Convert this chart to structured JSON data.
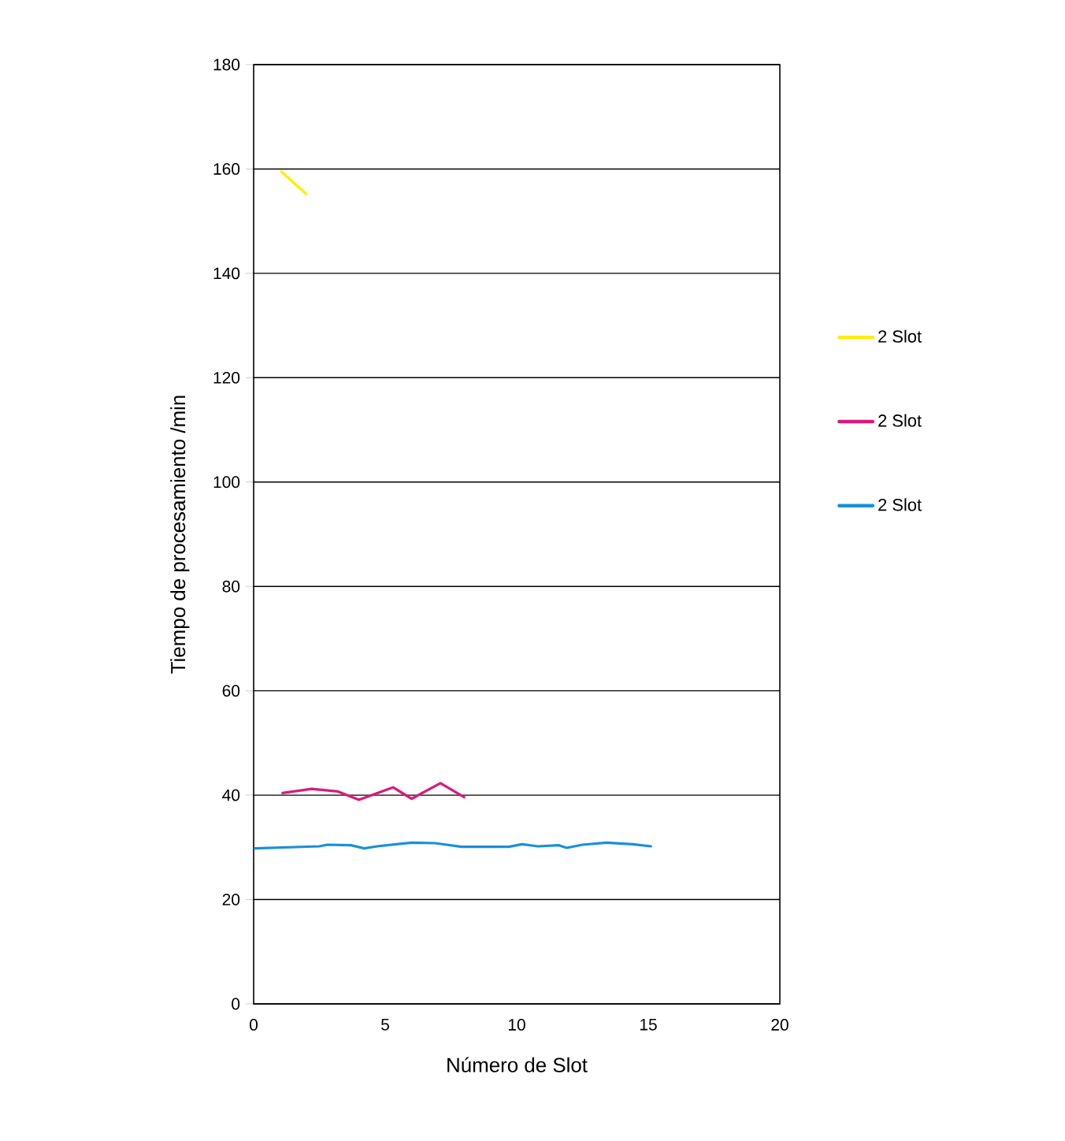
{
  "chart_data": {
    "type": "line",
    "xlabel": "Número de Slot",
    "ylabel": "Tiempo de procesamiento /min",
    "xlim": [
      0,
      20
    ],
    "xticks": [
      0,
      5,
      10,
      15,
      20
    ],
    "ylim": [
      0,
      180
    ],
    "yticks": [
      0,
      20,
      40,
      60,
      80,
      100,
      120,
      140,
      160,
      180
    ],
    "grid": "y",
    "legend": "right",
    "line_style": "solid",
    "marker": "none",
    "series": [
      {
        "name": "2 Slot",
        "color": "#ffee00",
        "x": [
          1.05,
          2.0
        ],
        "values": [
          159.5,
          155.2
        ]
      },
      {
        "name": "2 Slot",
        "color": "#d81b7a",
        "x": [
          1.1,
          2.2,
          3.2,
          4.0,
          4.7,
          5.3,
          6.0,
          7.1,
          8.0
        ],
        "values": [
          40.4,
          41.2,
          40.7,
          39.1,
          40.4,
          41.5,
          39.3,
          42.3,
          39.6
        ]
      },
      {
        "name": "2 Slot",
        "color": "#1a90d8",
        "x": [
          0.05,
          2.5,
          2.8,
          3.7,
          4.2,
          4.7,
          6.0,
          6.9,
          7.9,
          9.7,
          10.2,
          10.8,
          11.6,
          11.9,
          12.5,
          13.4,
          14.4,
          15.1
        ],
        "values": [
          29.8,
          30.2,
          30.5,
          30.4,
          29.8,
          30.2,
          30.9,
          30.8,
          30.1,
          30.1,
          30.6,
          30.2,
          30.4,
          29.9,
          30.5,
          30.9,
          30.6,
          30.2
        ]
      }
    ]
  }
}
